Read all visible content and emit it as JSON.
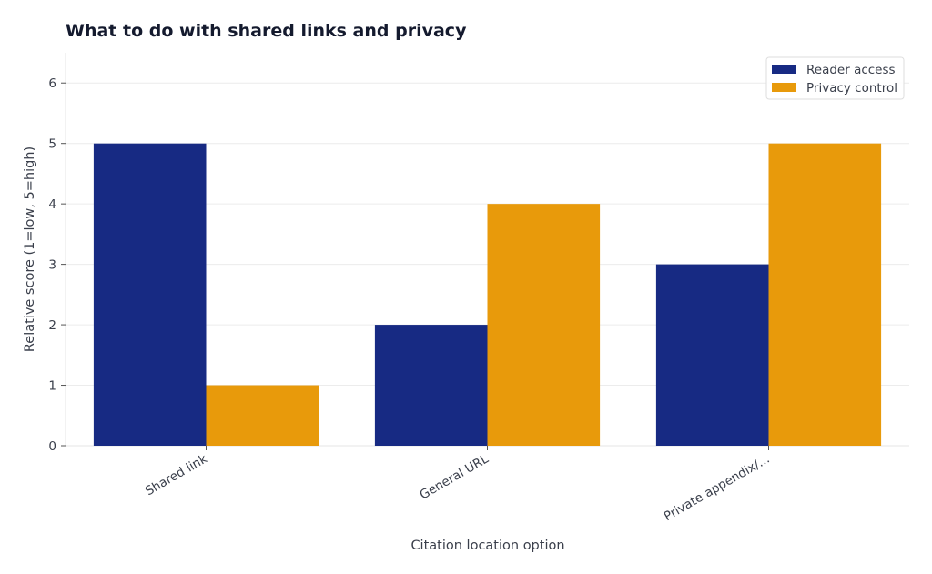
{
  "chart_data": {
    "type": "bar",
    "title": "What to do with shared links and privacy",
    "xlabel": "Citation location option",
    "ylabel": "Relative score (1=low, 5=high)",
    "categories": [
      "Shared link",
      "General URL",
      "Private appendix/..."
    ],
    "series": [
      {
        "name": "Reader access",
        "values": [
          5,
          2,
          3
        ],
        "color": "#172a83"
      },
      {
        "name": "Privacy control",
        "values": [
          1,
          4,
          5
        ],
        "color": "#e89a0b"
      }
    ],
    "ylim": [
      0,
      6.5
    ],
    "yticks": [
      0,
      1,
      2,
      3,
      4,
      5,
      6
    ],
    "grid": true,
    "legend_position": "top-right"
  }
}
